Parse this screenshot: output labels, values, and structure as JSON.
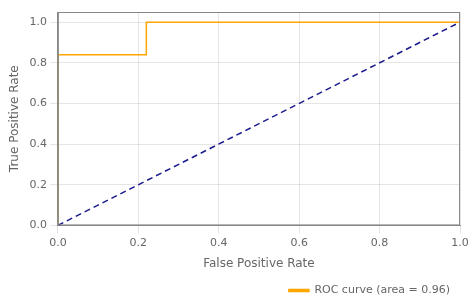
{
  "chart_data": {
    "type": "line",
    "x_label": "False Positive Rate",
    "y_label": "True Positive Rate",
    "series": [
      {
        "x": [
          0.0,
          1.0
        ],
        "values": [
          0.0,
          1.0
        ],
        "color": "#1a1a8c",
        "line_style": "dashed"
      },
      {
        "name": "ROC curve (area = 0.96)",
        "x": [
          0.0,
          0.0,
          0.22,
          0.22,
          1.0
        ],
        "values": [
          0.0,
          0.84,
          0.84,
          1.0,
          1.0
        ],
        "color": "#FFA500",
        "line_style": "solid"
      }
    ],
    "xlim": [
      0.0,
      1.0
    ],
    "ylim": [
      0.0,
      1.05
    ],
    "xticks": [
      {
        "value": 0,
        "label": "0.0"
      },
      0.2,
      0.4,
      0.6,
      0.8,
      {
        "value": 1,
        "label": "1.0"
      }
    ],
    "yticks": [
      {
        "value": 0,
        "label": "0.0"
      },
      0.2,
      0.4,
      0.6,
      0.8,
      {
        "value": 1,
        "label": "1.0"
      }
    ],
    "grid": true,
    "legend": "lower right"
  }
}
